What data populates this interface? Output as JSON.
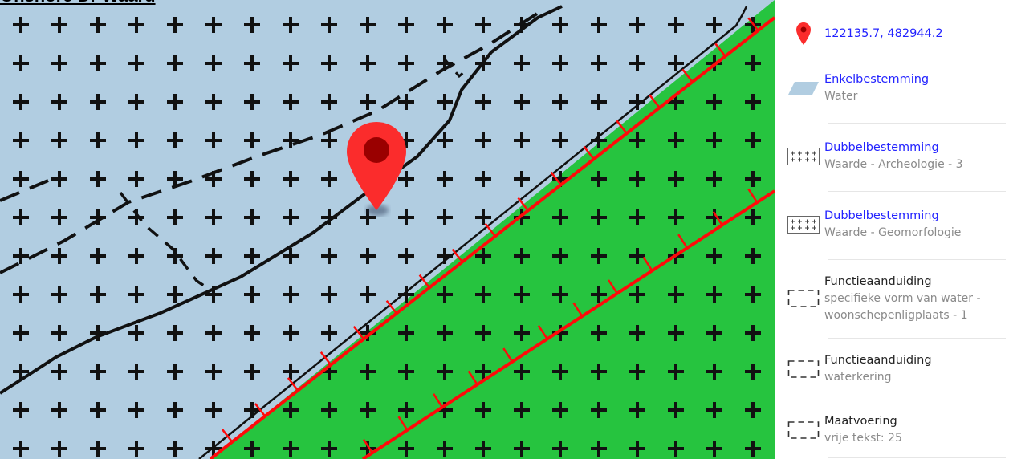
{
  "map": {
    "title": "Onshore Dr Waard",
    "colors": {
      "water": "#b1cde1",
      "land": "#26c43f",
      "boundary_red": "#ff0a0a",
      "line": "#111111",
      "marker": "#fb2c2c",
      "marker_dot": "#9a0000"
    }
  },
  "legend": {
    "coordinate": {
      "icon": "map-marker-icon",
      "text": "122135.7, 482944.2"
    },
    "items": [
      {
        "icon": "water-fill-swatch-icon",
        "title": "Enkelbestemming",
        "subtitle": "Water",
        "title_is_link": true
      },
      {
        "icon": "cross-hatch-swatch-icon",
        "title": "Dubbelbestemming",
        "subtitle": "Waarde - Archeologie - 3",
        "title_is_link": true
      },
      {
        "icon": "cross-hatch-swatch-icon",
        "title": "Dubbelbestemming",
        "subtitle": "Waarde - Geomorfologie",
        "title_is_link": true
      },
      {
        "icon": "dashed-outline-swatch-icon",
        "title": "Functieaanduiding",
        "subtitle": "specifieke vorm van water - woonschepenligplaats - 1",
        "title_is_link": false
      },
      {
        "icon": "dashed-outline-swatch-icon",
        "title": "Functieaanduiding",
        "subtitle": "waterkering",
        "title_is_link": false
      },
      {
        "icon": "dashed-outline-swatch-icon",
        "title": "Maatvoering",
        "subtitle": "vrije tekst: 25",
        "title_is_link": false
      }
    ]
  }
}
